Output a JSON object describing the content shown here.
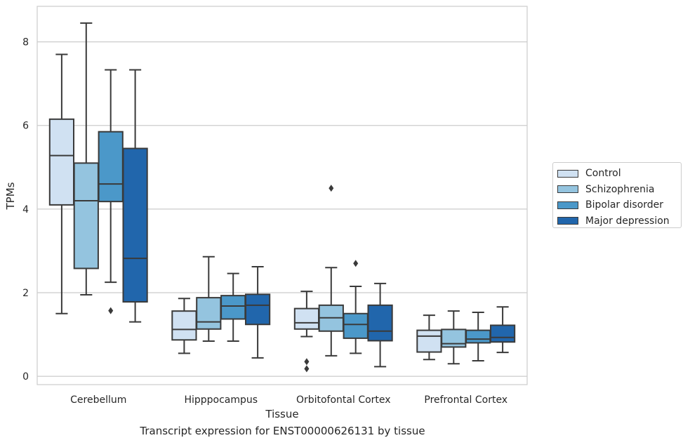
{
  "chart_data": {
    "type": "box",
    "xlabel": "Tissue",
    "ylabel": "TPMs",
    "caption": "Transcript expression for ENST00000626131 by tissue",
    "ylim": [
      -0.2,
      8.85
    ],
    "yticks": [
      0,
      2,
      4,
      6,
      8
    ],
    "grid": "horizontal",
    "legend_position": "right",
    "categories": [
      "Cerebellum",
      "Hipppocampus",
      "Orbitofontal Cortex",
      "Prefrontal Cortex"
    ],
    "series": [
      {
        "name": "Control",
        "color": "#d0e1f2",
        "boxes": [
          {
            "whisker_low": 1.5,
            "q1": 4.1,
            "median": 5.28,
            "q3": 6.15,
            "whisker_high": 7.7,
            "outliers": []
          },
          {
            "whisker_low": 0.55,
            "q1": 0.87,
            "median": 1.12,
            "q3": 1.56,
            "whisker_high": 1.86,
            "outliers": []
          },
          {
            "whisker_low": 0.95,
            "q1": 1.13,
            "median": 1.28,
            "q3": 1.62,
            "whisker_high": 2.03,
            "outliers": [
              0.35,
              0.18
            ]
          },
          {
            "whisker_low": 0.4,
            "q1": 0.58,
            "median": 0.96,
            "q3": 1.1,
            "whisker_high": 1.46,
            "outliers": []
          }
        ]
      },
      {
        "name": "Schizophrenia",
        "color": "#94c4df",
        "boxes": [
          {
            "whisker_low": 1.95,
            "q1": 2.58,
            "median": 4.2,
            "q3": 5.1,
            "whisker_high": 8.45,
            "outliers": []
          },
          {
            "whisker_low": 0.84,
            "q1": 1.13,
            "median": 1.3,
            "q3": 1.88,
            "whisker_high": 2.86,
            "outliers": []
          },
          {
            "whisker_low": 0.49,
            "q1": 1.08,
            "median": 1.4,
            "q3": 1.7,
            "whisker_high": 2.6,
            "outliers": [
              4.5
            ]
          },
          {
            "whisker_low": 0.3,
            "q1": 0.7,
            "median": 0.78,
            "q3": 1.12,
            "whisker_high": 1.56,
            "outliers": []
          }
        ]
      },
      {
        "name": "Bipolar disorder",
        "color": "#4b98c9",
        "boxes": [
          {
            "whisker_low": 2.25,
            "q1": 4.18,
            "median": 4.6,
            "q3": 5.85,
            "whisker_high": 7.33,
            "outliers": [
              1.57
            ]
          },
          {
            "whisker_low": 0.84,
            "q1": 1.37,
            "median": 1.68,
            "q3": 1.93,
            "whisker_high": 2.46,
            "outliers": []
          },
          {
            "whisker_low": 0.55,
            "q1": 0.91,
            "median": 1.24,
            "q3": 1.5,
            "whisker_high": 2.15,
            "outliers": [
              2.7
            ]
          },
          {
            "whisker_low": 0.37,
            "q1": 0.8,
            "median": 0.89,
            "q3": 1.1,
            "whisker_high": 1.53,
            "outliers": []
          }
        ]
      },
      {
        "name": "Major depression",
        "color": "#2166ac",
        "boxes": [
          {
            "whisker_low": 1.3,
            "q1": 1.78,
            "median": 2.82,
            "q3": 5.45,
            "whisker_high": 7.33,
            "outliers": []
          },
          {
            "whisker_low": 0.44,
            "q1": 1.24,
            "median": 1.7,
            "q3": 1.96,
            "whisker_high": 2.62,
            "outliers": []
          },
          {
            "whisker_low": 0.23,
            "q1": 0.85,
            "median": 1.08,
            "q3": 1.7,
            "whisker_high": 2.22,
            "outliers": []
          },
          {
            "whisker_low": 0.57,
            "q1": 0.82,
            "median": 0.93,
            "q3": 1.22,
            "whisker_high": 1.66,
            "outliers": []
          }
        ]
      }
    ]
  }
}
